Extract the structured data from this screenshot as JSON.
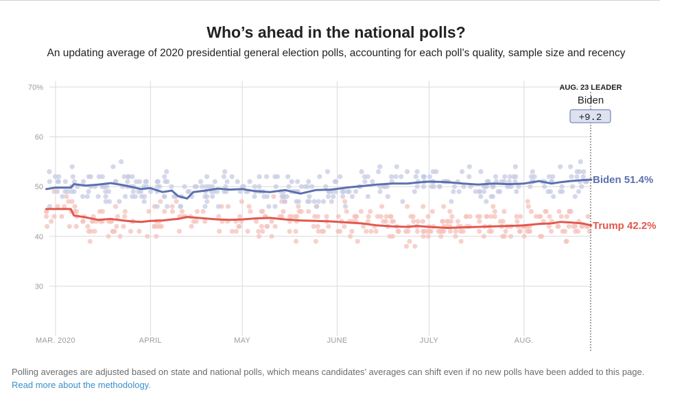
{
  "header": {
    "title": "Who’s ahead in the national polls?",
    "subtitle": "An updating average of 2020 presidential general election polls, accounting for each poll’s quality, sample size and recency"
  },
  "footnote": {
    "text": "Polling averages are adjusted based on state and national polls, which means candidates’ averages can shift even if no new polls have been added to this page. ",
    "link_text": "Read more about the methodology."
  },
  "leader_box": {
    "title": "AUG. 23 LEADER",
    "name": "Biden",
    "margin": "+9.2"
  },
  "colors": {
    "biden": "#5b6fad",
    "trump": "#e2574c",
    "biden_dot": "#c5cbe3",
    "trump_dot": "#f4c1bb",
    "grid": "#d9d9d9"
  },
  "chart_data": {
    "type": "line",
    "title": "Who’s ahead in the national polls?",
    "xlabel": "",
    "ylabel": "",
    "ylim": [
      20,
      70
    ],
    "yticks": [
      30,
      40,
      50,
      60,
      70
    ],
    "ytick_labels": [
      "30",
      "40",
      "50",
      "60",
      "70%"
    ],
    "x_unit": "days since Mar. 1, 2020",
    "xlim": [
      -2,
      175
    ],
    "month_ticks": [
      {
        "label": "MAR. 2020",
        "day": 0
      },
      {
        "label": "APRIL",
        "day": 31
      },
      {
        "label": "MAY",
        "day": 61
      },
      {
        "label": "JUNE",
        "day": 92
      },
      {
        "label": "JULY",
        "day": 122
      },
      {
        "label": "AUG.",
        "day": 153
      }
    ],
    "x": [
      -3,
      0,
      5,
      6,
      10,
      14,
      18,
      22,
      25,
      28,
      31,
      35,
      38,
      40,
      43,
      45,
      49,
      53,
      57,
      61,
      65,
      70,
      75,
      80,
      85,
      90,
      95,
      100,
      105,
      110,
      115,
      118,
      122,
      128,
      133,
      138,
      143,
      148,
      153,
      158,
      162,
      165,
      168,
      172,
      175
    ],
    "series": [
      {
        "name": "Biden",
        "end_label": "Biden 51.4%",
        "values": [
          49.5,
          49.8,
          49.8,
          50.5,
          50.2,
          50.4,
          50.7,
          50.3,
          49.9,
          49.5,
          49.7,
          48.9,
          49.2,
          48.1,
          47.6,
          48.9,
          49.2,
          49.6,
          49.4,
          49.5,
          49.1,
          48.9,
          49.3,
          48.6,
          49.3,
          49.4,
          49.8,
          50.1,
          50.4,
          50.6,
          50.6,
          50.8,
          51.0,
          50.9,
          50.6,
          50.4,
          50.6,
          50.5,
          50.6,
          51.1,
          50.6,
          50.9,
          51.1,
          51.3,
          51.4
        ]
      },
      {
        "name": "Trump",
        "end_label": "Trump 42.2%",
        "values": [
          45.5,
          45.5,
          45.5,
          44.2,
          43.8,
          43.3,
          43.5,
          43.2,
          43.0,
          42.9,
          43.1,
          43.2,
          43.4,
          43.5,
          43.9,
          43.8,
          43.6,
          43.4,
          43.3,
          43.4,
          43.6,
          43.7,
          43.4,
          43.2,
          43.1,
          43.0,
          42.8,
          42.6,
          42.2,
          42.0,
          41.9,
          42.1,
          41.9,
          41.7,
          41.8,
          41.9,
          42.0,
          42.1,
          42.2,
          42.5,
          42.6,
          42.9,
          42.8,
          42.6,
          42.2
        ]
      }
    ],
    "leader_date_day": 175
  }
}
